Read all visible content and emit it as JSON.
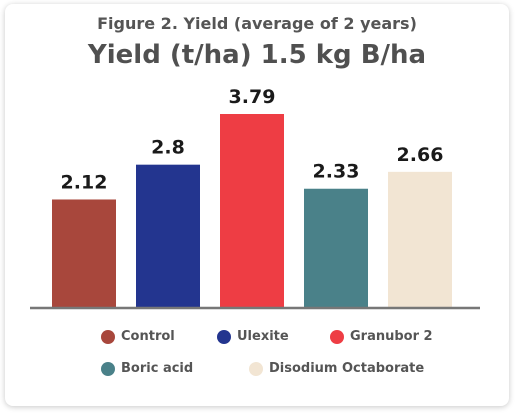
{
  "header": {
    "figure_caption": "Figure 2. Yield (average of 2 years)"
  },
  "chart_data": {
    "type": "bar",
    "title": "Yield (t/ha) 1.5 kg B/ha",
    "xlabel": "",
    "ylabel": "",
    "ylim": [
      0,
      4.2
    ],
    "grid": false,
    "legend_position": "bottom",
    "categories": [
      "Control",
      "Ulexite",
      "Granubor 2",
      "Boric acid",
      "Disodium Octaborate"
    ],
    "values": [
      2.12,
      2.8,
      3.79,
      2.33,
      2.66
    ],
    "data_labels": [
      "2.12",
      "2.8",
      "3.79",
      "2.33",
      "2.66"
    ],
    "colors": [
      "#a8473c",
      "#23358f",
      "#ee3d44",
      "#4a8189",
      "#f2e5d3"
    ]
  }
}
